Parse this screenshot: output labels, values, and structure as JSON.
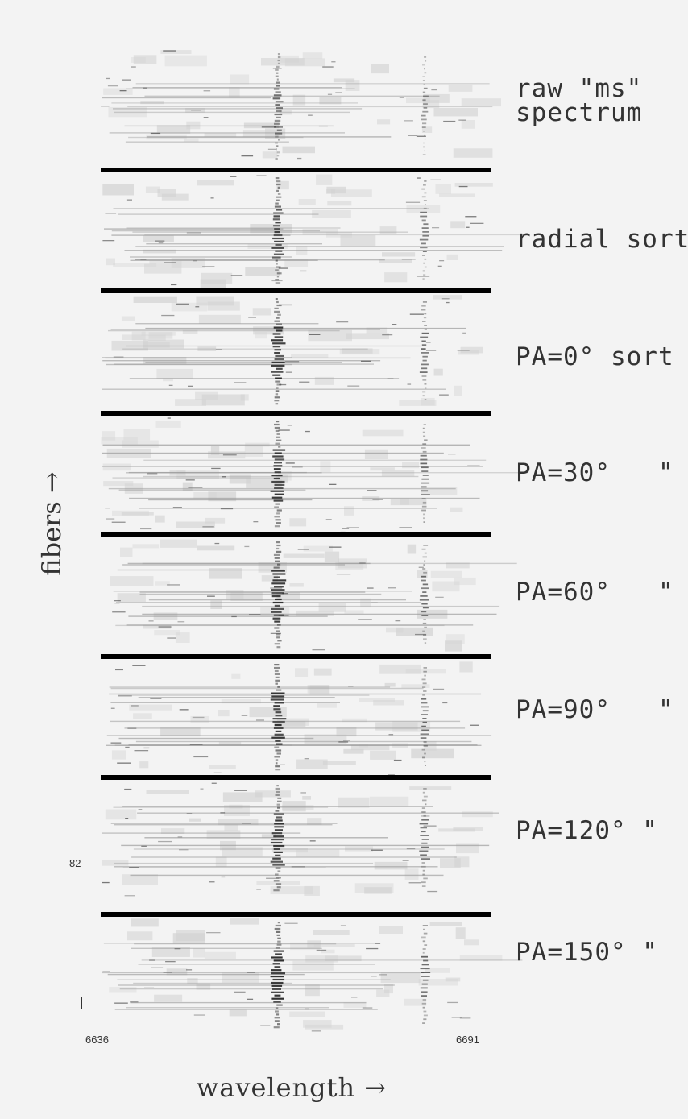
{
  "figure": {
    "axis_y_label": "fibers →",
    "axis_x_label": "wavelength →",
    "x_min_label": "6636",
    "x_max_label": "6691",
    "fiber_count_label": "82",
    "colors": {
      "background": "#f3f3f3",
      "separator": "#000000",
      "ink": "#111111"
    }
  },
  "panels": [
    {
      "label": "raw \"ms\"\nspectrum",
      "line_strength": 0.55
    },
    {
      "label": "radial sort",
      "line_strength": 0.75
    },
    {
      "label": "PA=0° sort",
      "line_strength": 0.85
    },
    {
      "label": "PA=30°   \"",
      "line_strength": 0.85
    },
    {
      "label": "PA=60°   \"",
      "line_strength": 0.85
    },
    {
      "label": "PA=90°   \"",
      "line_strength": 0.85
    },
    {
      "label": "PA=120° \"",
      "line_strength": 0.85
    },
    {
      "label": "PA=150° \"",
      "line_strength": 0.9
    }
  ]
}
